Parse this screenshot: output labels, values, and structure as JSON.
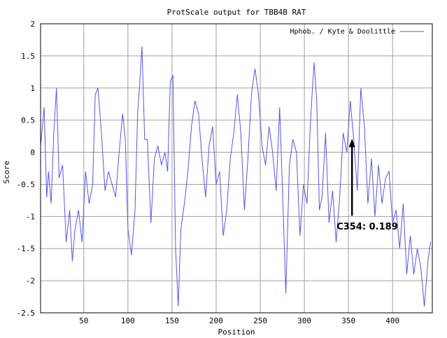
{
  "chart_data": {
    "type": "line",
    "title": "ProtScale output for TBB4B RAT",
    "xlabel": "Position",
    "ylabel": "Score",
    "xlim": [
      1,
      445
    ],
    "ylim": [
      -2.5,
      2
    ],
    "x_ticks": [
      50,
      100,
      150,
      200,
      250,
      300,
      350,
      400
    ],
    "x_tick_labels": [
      "50",
      "100",
      "150",
      "200",
      "250",
      "300",
      "350",
      "400"
    ],
    "y_ticks": [
      -2.5,
      -2,
      -1.5,
      -1,
      -0.5,
      0,
      0.5,
      1,
      1.5,
      2
    ],
    "y_tick_labels": [
      "-2.5",
      "-2",
      "-1.5",
      "-1",
      "-0.5",
      "0",
      "0.5",
      "1",
      "1.5",
      "2"
    ],
    "grid": true,
    "legend_position": "top-right",
    "series": [
      {
        "name": "Hphob. / Kyte & Doolittle",
        "color": "#5555ee",
        "x": [
          1,
          5,
          8,
          10,
          13,
          16,
          19,
          22,
          26,
          30,
          34,
          37,
          40,
          44,
          48,
          52,
          56,
          60,
          63,
          66,
          70,
          74,
          78,
          82,
          86,
          90,
          94,
          97,
          100,
          104,
          108,
          111,
          113,
          116,
          119,
          122,
          126,
          130,
          134,
          138,
          142,
          145,
          148,
          151,
          154,
          157,
          160,
          164,
          168,
          172,
          176,
          180,
          184,
          188,
          192,
          196,
          200,
          204,
          208,
          212,
          216,
          220,
          224,
          228,
          232,
          236,
          240,
          244,
          248,
          252,
          256,
          260,
          264,
          268,
          272,
          276,
          279,
          283,
          287,
          291,
          295,
          299,
          303,
          307,
          311,
          314,
          317,
          320,
          324,
          328,
          332,
          336,
          340,
          344,
          348,
          352,
          356,
          360,
          364,
          368,
          372,
          376,
          380,
          384,
          388,
          392,
          396,
          400,
          404,
          408,
          412,
          416,
          420,
          424,
          428,
          432,
          436,
          440,
          443
        ],
        "values": [
          0.1,
          0.7,
          -0.7,
          -0.3,
          -0.8,
          0.3,
          1.0,
          -0.4,
          -0.2,
          -1.4,
          -0.9,
          -1.7,
          -1.2,
          -0.9,
          -1.4,
          -0.3,
          -0.8,
          -0.5,
          0.9,
          1.0,
          0.3,
          -0.6,
          -0.3,
          -0.5,
          -0.7,
          0.0,
          0.6,
          0.2,
          -1.2,
          -1.6,
          -0.9,
          0.6,
          1.0,
          1.65,
          0.2,
          0.2,
          -1.1,
          -0.1,
          0.1,
          -0.2,
          0.0,
          -0.3,
          1.1,
          1.2,
          -1.5,
          -2.4,
          -1.2,
          -0.8,
          -0.3,
          0.4,
          0.8,
          0.6,
          -0.1,
          -0.7,
          0.1,
          0.4,
          -0.5,
          -0.3,
          -1.3,
          -0.9,
          -0.1,
          0.3,
          0.9,
          0.3,
          -0.9,
          -0.1,
          0.9,
          1.3,
          0.9,
          0.1,
          -0.2,
          0.4,
          0.0,
          -0.6,
          0.7,
          -0.9,
          -2.2,
          -0.2,
          0.2,
          0.0,
          -1.3,
          -0.5,
          -0.8,
          0.5,
          1.4,
          0.8,
          -0.9,
          -0.7,
          0.3,
          -1.1,
          -0.6,
          -1.4,
          -0.7,
          0.3,
          0.0,
          0.8,
          0.189,
          -0.6,
          1.0,
          0.4,
          -0.8,
          -0.1,
          -1.0,
          -0.2,
          -0.8,
          -0.4,
          -0.3,
          -1.1,
          -0.9,
          -1.5,
          -0.8,
          -1.9,
          -1.3,
          -1.9,
          -1.5,
          -1.8,
          -2.4,
          -1.7,
          -1.4
        ]
      }
    ],
    "annotations": [
      {
        "text": "C354: 0.189",
        "x": 354,
        "y": 0.189
      }
    ]
  }
}
